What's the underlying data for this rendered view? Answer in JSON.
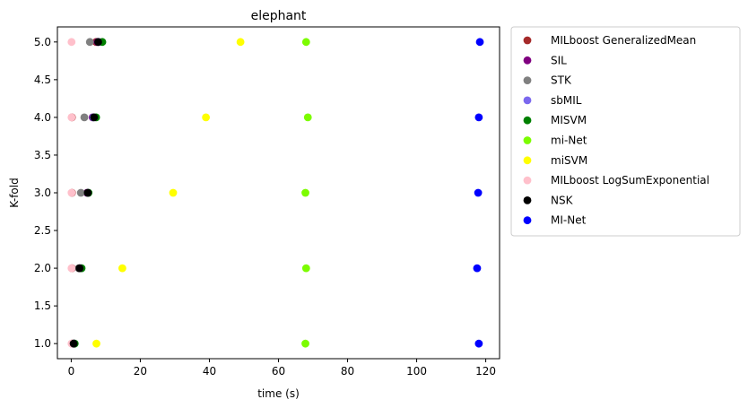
{
  "chart_data": {
    "type": "scatter",
    "title": "elephant",
    "xlabel": "time (s)",
    "ylabel": "K-fold",
    "xlim": [
      -4,
      124
    ],
    "ylim": [
      0.8,
      5.2
    ],
    "xticks": [
      0,
      20,
      40,
      60,
      80,
      100,
      120
    ],
    "yticks": [
      1.0,
      1.5,
      2.0,
      2.5,
      3.0,
      3.5,
      4.0,
      4.5,
      5.0
    ],
    "grid": false,
    "legend_position": "outside-right",
    "series": [
      {
        "name": "MILboost GeneralizedMean",
        "color": "#a52a2a",
        "points": [
          [
            0.2,
            1
          ],
          [
            0.2,
            2
          ],
          [
            0.2,
            3
          ],
          [
            0.2,
            4
          ],
          [
            7.2,
            5
          ]
        ]
      },
      {
        "name": "SIL",
        "color": "#800080",
        "points": [
          [
            0.8,
            1
          ],
          [
            2.6,
            2
          ],
          [
            4.6,
            3
          ],
          [
            6.2,
            4
          ],
          [
            7.6,
            5
          ]
        ]
      },
      {
        "name": "STK",
        "color": "#808080",
        "points": [
          [
            0.6,
            1
          ],
          [
            2.2,
            2
          ],
          [
            2.8,
            3
          ],
          [
            3.8,
            4
          ],
          [
            5.4,
            5
          ]
        ]
      },
      {
        "name": "sbMIL",
        "color": "#7b68ee",
        "points": [
          [
            0.9,
            1
          ],
          [
            2.9,
            2
          ],
          [
            4.9,
            3
          ],
          [
            6.4,
            4
          ],
          [
            8.0,
            5
          ]
        ]
      },
      {
        "name": "MISVM",
        "color": "#008000",
        "points": [
          [
            1.0,
            1
          ],
          [
            3.0,
            2
          ],
          [
            5.0,
            3
          ],
          [
            7.2,
            4
          ],
          [
            9.0,
            5
          ]
        ]
      },
      {
        "name": "mi-Net",
        "color": "#7cfc00",
        "points": [
          [
            67.8,
            1
          ],
          [
            68.0,
            2
          ],
          [
            67.8,
            3
          ],
          [
            68.5,
            4
          ],
          [
            68.0,
            5
          ]
        ]
      },
      {
        "name": "miSVM",
        "color": "#ffff00",
        "points": [
          [
            7.3,
            1
          ],
          [
            14.8,
            2
          ],
          [
            29.5,
            3
          ],
          [
            39.0,
            4
          ],
          [
            49.0,
            5
          ]
        ]
      },
      {
        "name": "MILboost LogSumExponential",
        "color": "#ffc0cb",
        "points": [
          [
            0.1,
            1
          ],
          [
            0.1,
            2
          ],
          [
            0.1,
            3
          ],
          [
            0.1,
            4
          ],
          [
            0.1,
            5
          ]
        ]
      },
      {
        "name": "NSK",
        "color": "#000000",
        "points": [
          [
            0.7,
            1
          ],
          [
            2.4,
            2
          ],
          [
            4.8,
            3
          ],
          [
            6.6,
            4
          ],
          [
            7.8,
            5
          ]
        ]
      },
      {
        "name": "MI-Net",
        "color": "#0000ff",
        "points": [
          [
            118.0,
            1
          ],
          [
            117.5,
            2
          ],
          [
            117.8,
            3
          ],
          [
            118.0,
            4
          ],
          [
            118.3,
            5
          ]
        ]
      }
    ]
  }
}
